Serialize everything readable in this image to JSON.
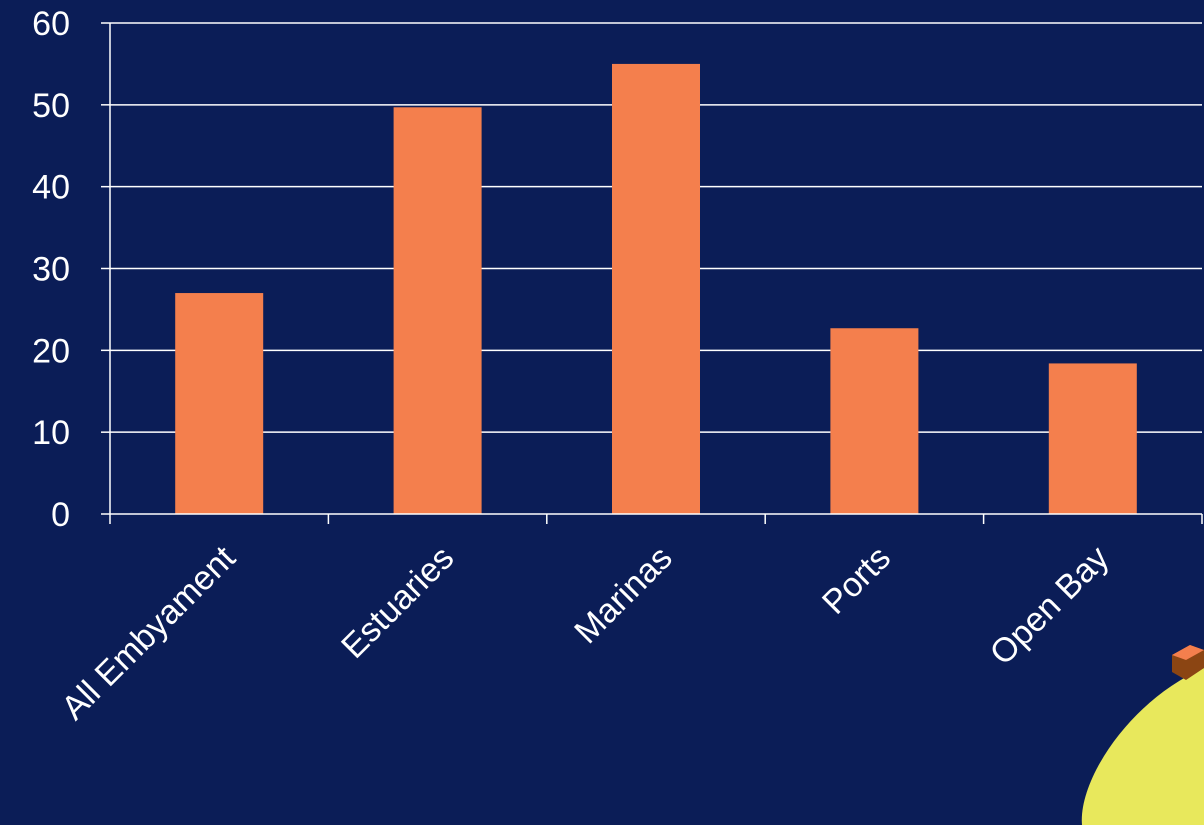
{
  "chart_data": {
    "type": "bar",
    "categories": [
      "All Embyament",
      "Estuaries",
      "Marinas",
      "Ports",
      "Open Bay"
    ],
    "values": [
      27,
      49.7,
      55,
      22.7,
      18.4
    ],
    "ylim": [
      0,
      60
    ],
    "yticks": [
      0,
      10,
      20,
      30,
      40,
      50,
      60
    ],
    "grid": true,
    "colors": {
      "background": "#0b1d57",
      "bar": "#f47f4d",
      "grid": "#ffffff",
      "text": "#ffffff",
      "decoration": "#e8e85c"
    }
  }
}
